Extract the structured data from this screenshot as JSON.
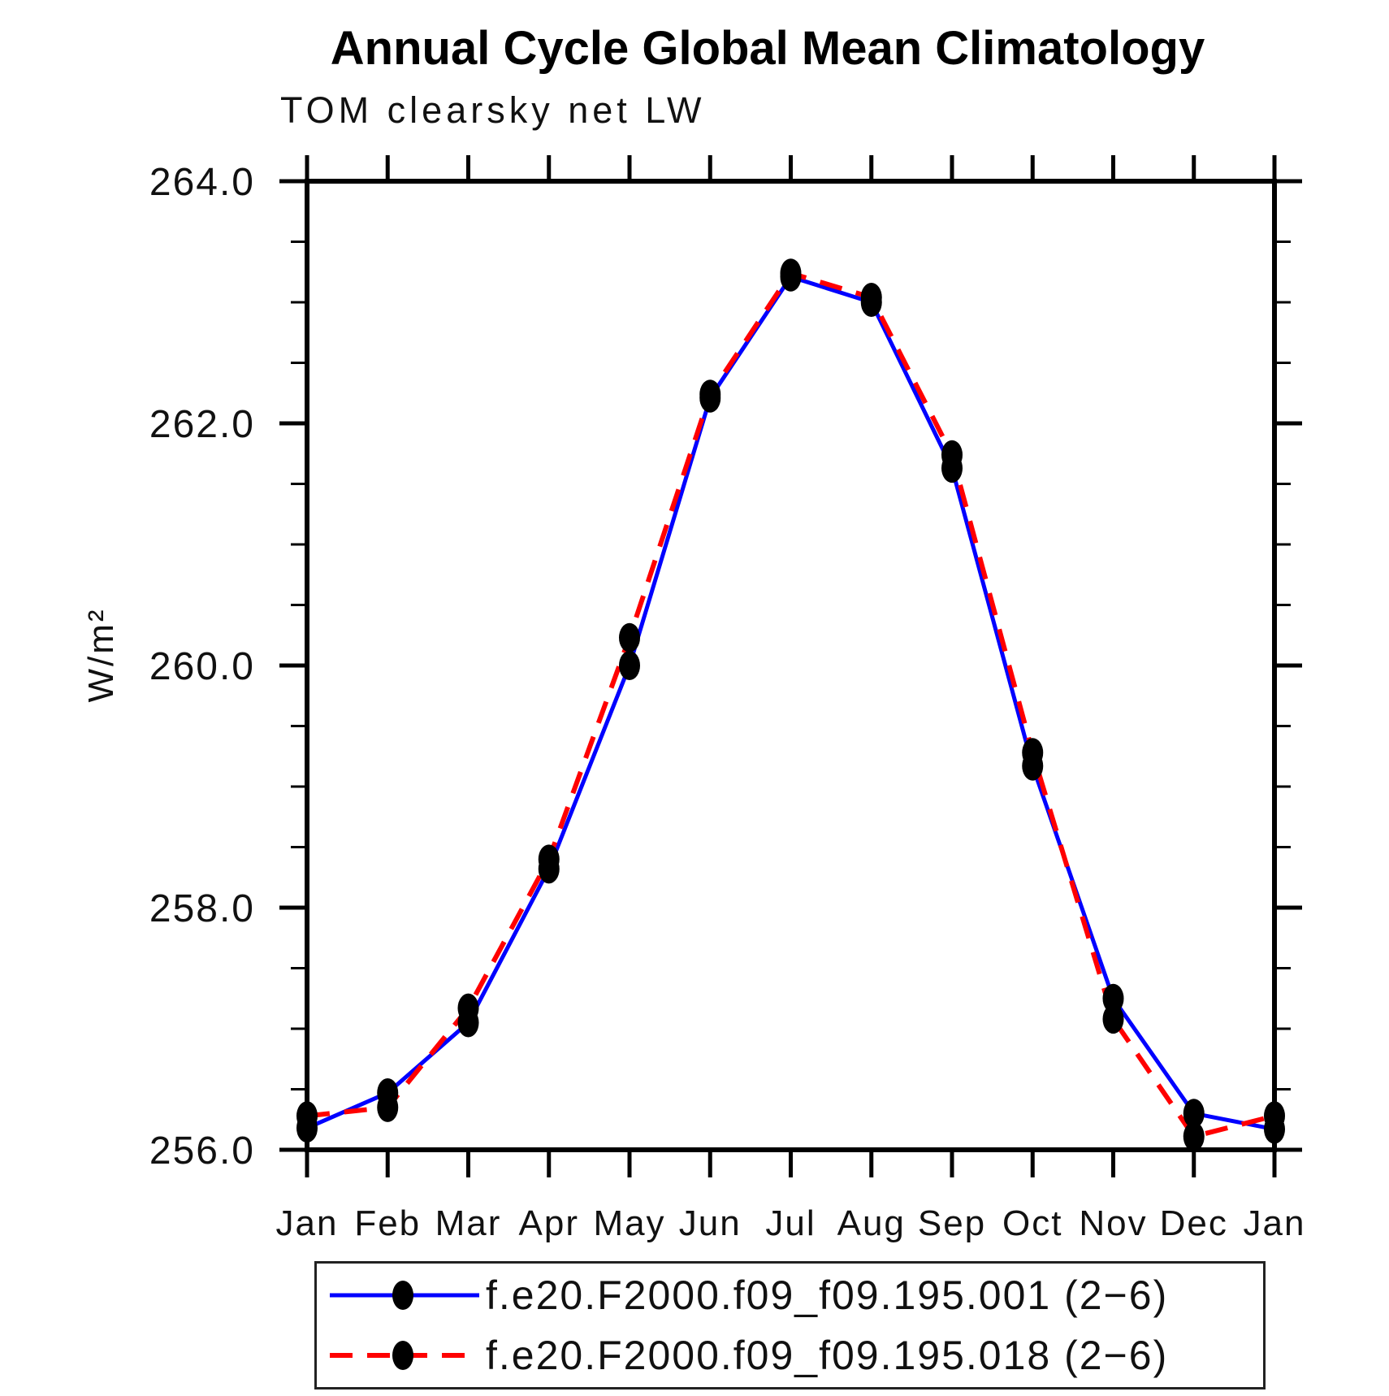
{
  "chart_data": {
    "type": "line",
    "title": "Annual Cycle Global Mean Climatology",
    "subtitle": "TOM clearsky net LW",
    "ylabel": "W/m²",
    "xlabel": "",
    "categories": [
      "Jan",
      "Feb",
      "Mar",
      "Apr",
      "May",
      "Jun",
      "Jul",
      "Aug",
      "Sep",
      "Oct",
      "Nov",
      "Dec",
      "Jan"
    ],
    "ylim": [
      256.0,
      264.0
    ],
    "ytick_step": 2.0,
    "minor_tick_step": 0.5,
    "ytick_labels": [
      "256.0",
      "258.0",
      "260.0",
      "262.0",
      "264.0"
    ],
    "grid": false,
    "legend_position": "bottom",
    "marker": {
      "shape": "filled-ellipse",
      "color": "#000000"
    },
    "axis_color": "#000000",
    "series": [
      {
        "name": "f.e20.F2000.f09_f09.195.001 (2−6)",
        "color": "#0000ff",
        "line_style": "solid",
        "values": [
          256.18,
          256.47,
          257.05,
          258.32,
          260.0,
          262.21,
          263.21,
          263.0,
          261.63,
          259.17,
          257.25,
          256.3,
          256.17
        ]
      },
      {
        "name": "f.e20.F2000.f09_f09.195.018 (2−6)",
        "color": "#ff0000",
        "line_style": "dashed",
        "values": [
          256.28,
          256.35,
          257.17,
          258.4,
          260.23,
          262.24,
          263.24,
          263.04,
          261.74,
          259.28,
          257.08,
          256.11,
          256.28
        ]
      }
    ]
  }
}
